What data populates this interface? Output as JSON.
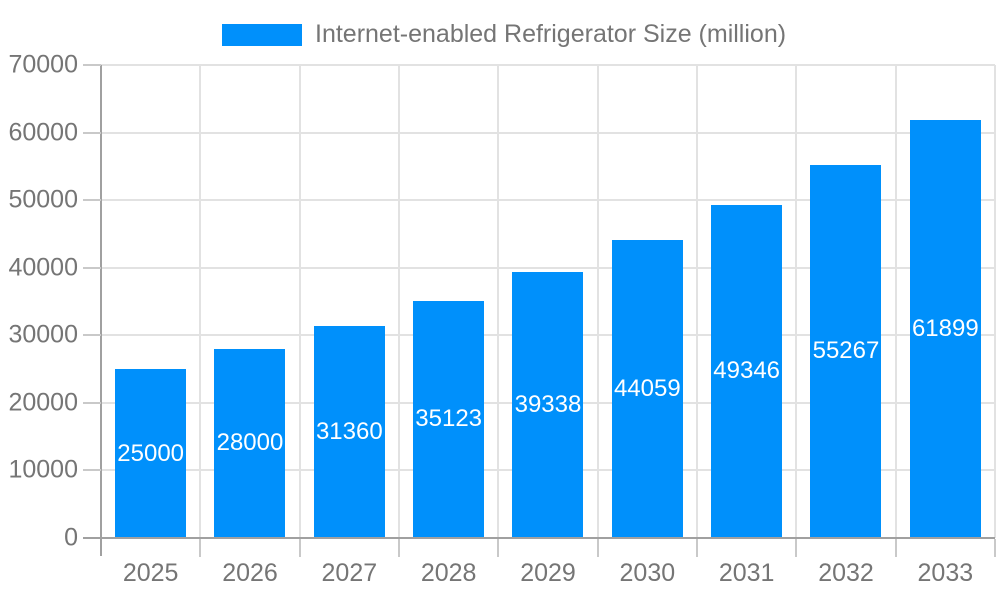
{
  "chart_data": {
    "type": "bar",
    "title": "Internet-enabled Refrigerator Size (million)",
    "legend_position": "top",
    "categories": [
      "2025",
      "2026",
      "2027",
      "2028",
      "2029",
      "2030",
      "2031",
      "2032",
      "2033"
    ],
    "series": [
      {
        "name": "Internet-enabled Refrigerator Size (million)",
        "values": [
          25000,
          28000,
          31360,
          35123,
          39338,
          44059,
          49346,
          55267,
          61899
        ]
      }
    ],
    "bar_value_labels": [
      "25000",
      "28000",
      "31360",
      "35123",
      "39338",
      "44059",
      "49346",
      "55267",
      "61899"
    ],
    "xlabel": "",
    "ylabel": "",
    "ylim": [
      0,
      70000
    ],
    "y_ticks": [
      0,
      10000,
      20000,
      30000,
      40000,
      50000,
      60000,
      70000
    ],
    "y_tick_labels": [
      "0",
      "10000",
      "20000",
      "30000",
      "40000",
      "50000",
      "60000",
      "70000"
    ],
    "grid": true,
    "colors": {
      "bar": "#0090FB",
      "grid": "#e2e2e2",
      "axis": "#a0a0a0",
      "tick": "#c9c9c9",
      "text": "#757575",
      "value_label": "#ffffff",
      "background": "#ffffff"
    }
  }
}
